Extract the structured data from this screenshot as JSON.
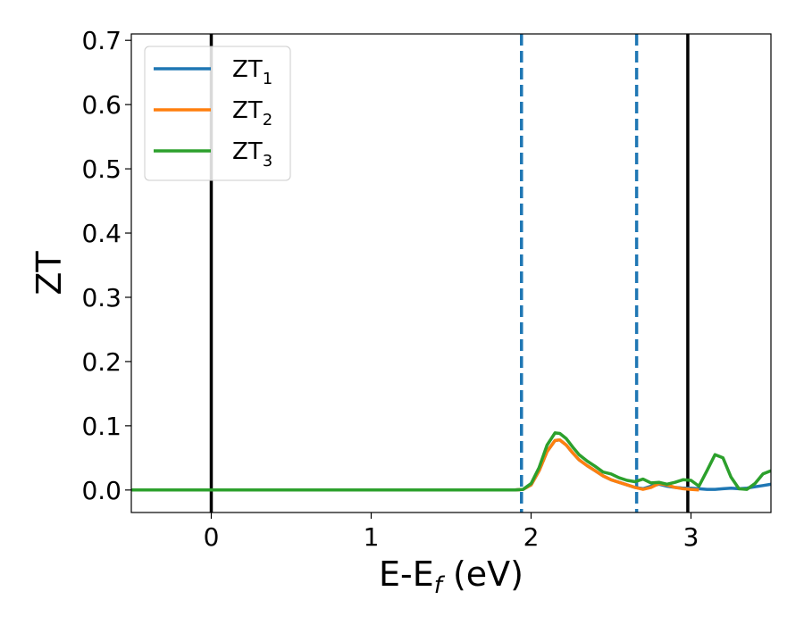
{
  "chart_data": {
    "type": "line",
    "xlabel": "E-E",
    "xlabel_sub": "f",
    "xlabel_unit": " (eV)",
    "ylabel": "ZT",
    "xlim": [
      -0.5,
      3.5
    ],
    "ylim": [
      -0.035,
      0.71
    ],
    "xticks": [
      0,
      1,
      2,
      3
    ],
    "xtick_labels": [
      "0",
      "1",
      "2",
      "3"
    ],
    "yticks": [
      0.0,
      0.1,
      0.2,
      0.3,
      0.4,
      0.5,
      0.6,
      0.7
    ],
    "ytick_labels": [
      "0.0",
      "0.1",
      "0.2",
      "0.3",
      "0.4",
      "0.5",
      "0.6",
      "0.7"
    ],
    "grid": false,
    "legend_position": "top-left",
    "series": [
      {
        "name": "ZT",
        "name_sub": "1",
        "color": "#1f77b4",
        "x": [
          -0.5,
          1.9,
          1.95,
          2.0,
          2.05,
          2.1,
          2.15,
          2.18,
          2.22,
          2.26,
          2.3,
          2.35,
          2.4,
          2.45,
          2.5,
          2.55,
          2.6,
          2.65,
          2.7,
          2.75,
          2.8,
          2.85,
          2.9,
          2.95,
          3.0,
          3.05,
          3.1,
          3.15,
          3.2,
          3.25,
          3.3,
          3.35,
          3.4,
          3.45,
          3.5
        ],
        "y": [
          0.0,
          0.0,
          0.001,
          0.008,
          0.03,
          0.06,
          0.077,
          0.078,
          0.07,
          0.058,
          0.047,
          0.038,
          0.03,
          0.022,
          0.016,
          0.012,
          0.008,
          0.004,
          0.002,
          0.006,
          0.009,
          0.006,
          0.004,
          0.003,
          0.003,
          0.002,
          0.001,
          0.001,
          0.002,
          0.003,
          0.002,
          0.003,
          0.005,
          0.007,
          0.009
        ]
      },
      {
        "name": "ZT",
        "name_sub": "2",
        "color": "#ff7f0e",
        "x": [
          -0.5,
          1.9,
          1.95,
          2.0,
          2.05,
          2.1,
          2.15,
          2.18,
          2.22,
          2.26,
          2.3,
          2.35,
          2.4,
          2.45,
          2.5,
          2.55,
          2.6,
          2.65,
          2.7,
          2.75,
          2.8,
          2.85,
          2.9,
          2.95,
          3.0,
          3.05
        ],
        "y": [
          0.0,
          0.0,
          0.001,
          0.008,
          0.03,
          0.06,
          0.077,
          0.078,
          0.07,
          0.058,
          0.047,
          0.038,
          0.03,
          0.022,
          0.016,
          0.012,
          0.008,
          0.004,
          0.001,
          0.004,
          0.01,
          0.008,
          0.004,
          0.002,
          0.001,
          0.0
        ]
      },
      {
        "name": "ZT",
        "name_sub": "3",
        "color": "#2ca02c",
        "x": [
          -0.5,
          1.9,
          1.95,
          2.0,
          2.05,
          2.1,
          2.15,
          2.18,
          2.22,
          2.26,
          2.3,
          2.35,
          2.4,
          2.45,
          2.5,
          2.55,
          2.6,
          2.65,
          2.7,
          2.75,
          2.8,
          2.85,
          2.9,
          2.95,
          3.0,
          3.05,
          3.1,
          3.15,
          3.2,
          3.25,
          3.3,
          3.35,
          3.4,
          3.45,
          3.5
        ],
        "y": [
          0.0,
          0.0,
          0.001,
          0.01,
          0.035,
          0.07,
          0.089,
          0.088,
          0.08,
          0.067,
          0.055,
          0.045,
          0.037,
          0.028,
          0.025,
          0.019,
          0.015,
          0.013,
          0.017,
          0.011,
          0.012,
          0.009,
          0.012,
          0.016,
          0.015,
          0.006,
          0.03,
          0.055,
          0.05,
          0.02,
          0.002,
          0.001,
          0.01,
          0.025,
          0.03
        ]
      }
    ],
    "vlines": [
      {
        "x": 0.0,
        "color": "#000000",
        "style": "solid"
      },
      {
        "x": 2.98,
        "color": "#000000",
        "style": "solid"
      },
      {
        "x": 1.94,
        "color": "#1f77b4",
        "style": "dashed"
      },
      {
        "x": 2.66,
        "color": "#1f77b4",
        "style": "dashed"
      }
    ]
  }
}
